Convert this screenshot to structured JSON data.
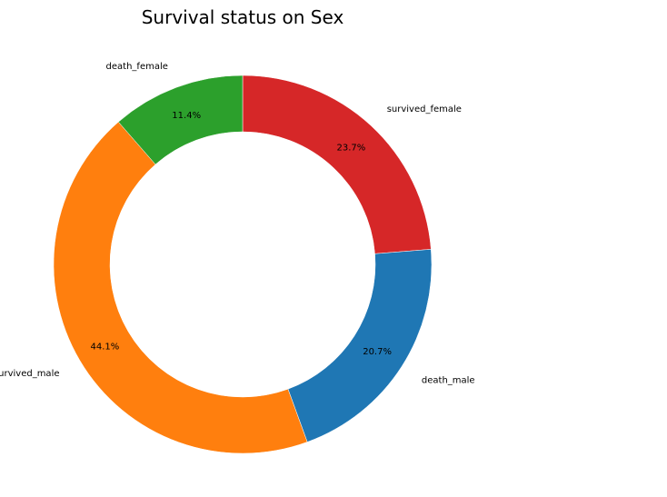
{
  "chart_data": {
    "type": "pie",
    "donut": true,
    "title": "Survival status on Sex",
    "slices": [
      {
        "label": "survived_female",
        "value": 23.7,
        "pct_label": "23.7%",
        "color": "#d62728"
      },
      {
        "label": "death_male",
        "value": 20.7,
        "pct_label": "20.7%",
        "color": "#1f77b4"
      },
      {
        "label": "survived_male",
        "value": 44.1,
        "pct_label": "44.1%",
        "color": "#ff7f0e"
      },
      {
        "label": "death_female",
        "value": 11.4,
        "pct_label": "11.4%",
        "color": "#2ca02c"
      }
    ]
  }
}
